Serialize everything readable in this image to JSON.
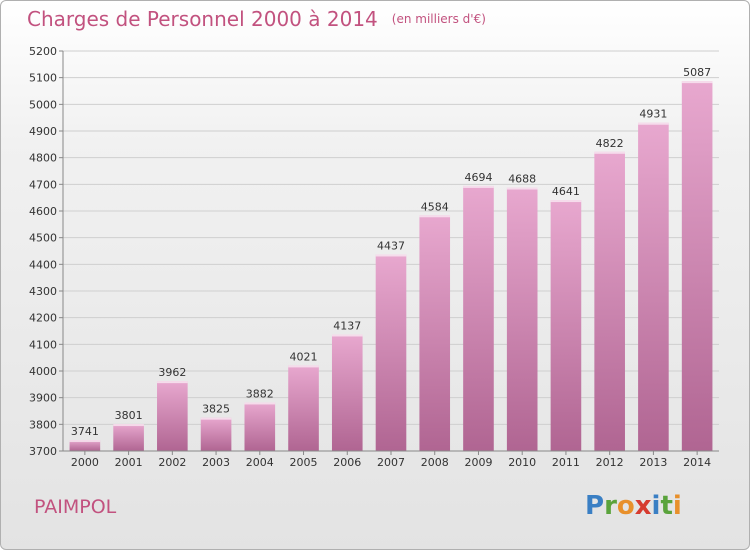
{
  "title": "Charges de Personnel 2000 à 2014",
  "title_unit": "(en milliers d'€)",
  "town": "PAIMPOL",
  "logo": {
    "letters": [
      "P",
      "r",
      "o",
      "x",
      "i",
      "t",
      "i"
    ],
    "colors": [
      "#3a7fc4",
      "#5aa33c",
      "#e8902b",
      "#d63b2f",
      "#3a7fc4",
      "#5aa33c",
      "#e8902b"
    ]
  },
  "colors": {
    "accent": "#c2527f",
    "bar_top": "#e8a8cf",
    "bar_bottom": "#b06592"
  },
  "chart_data": {
    "type": "bar",
    "categories": [
      "2000",
      "2001",
      "2002",
      "2003",
      "2004",
      "2005",
      "2006",
      "2007",
      "2008",
      "2009",
      "2010",
      "2011",
      "2012",
      "2013",
      "2014"
    ],
    "values": [
      3741,
      3801,
      3962,
      3825,
      3882,
      4021,
      4137,
      4437,
      4584,
      4694,
      4688,
      4641,
      4822,
      4931,
      5087
    ],
    "ylim": [
      3700,
      5200
    ],
    "yticks": [
      3700,
      3800,
      3900,
      4000,
      4100,
      4200,
      4300,
      4400,
      4500,
      4600,
      4700,
      4800,
      4900,
      5000,
      5100,
      5200
    ],
    "grid": true,
    "legend": "none"
  }
}
